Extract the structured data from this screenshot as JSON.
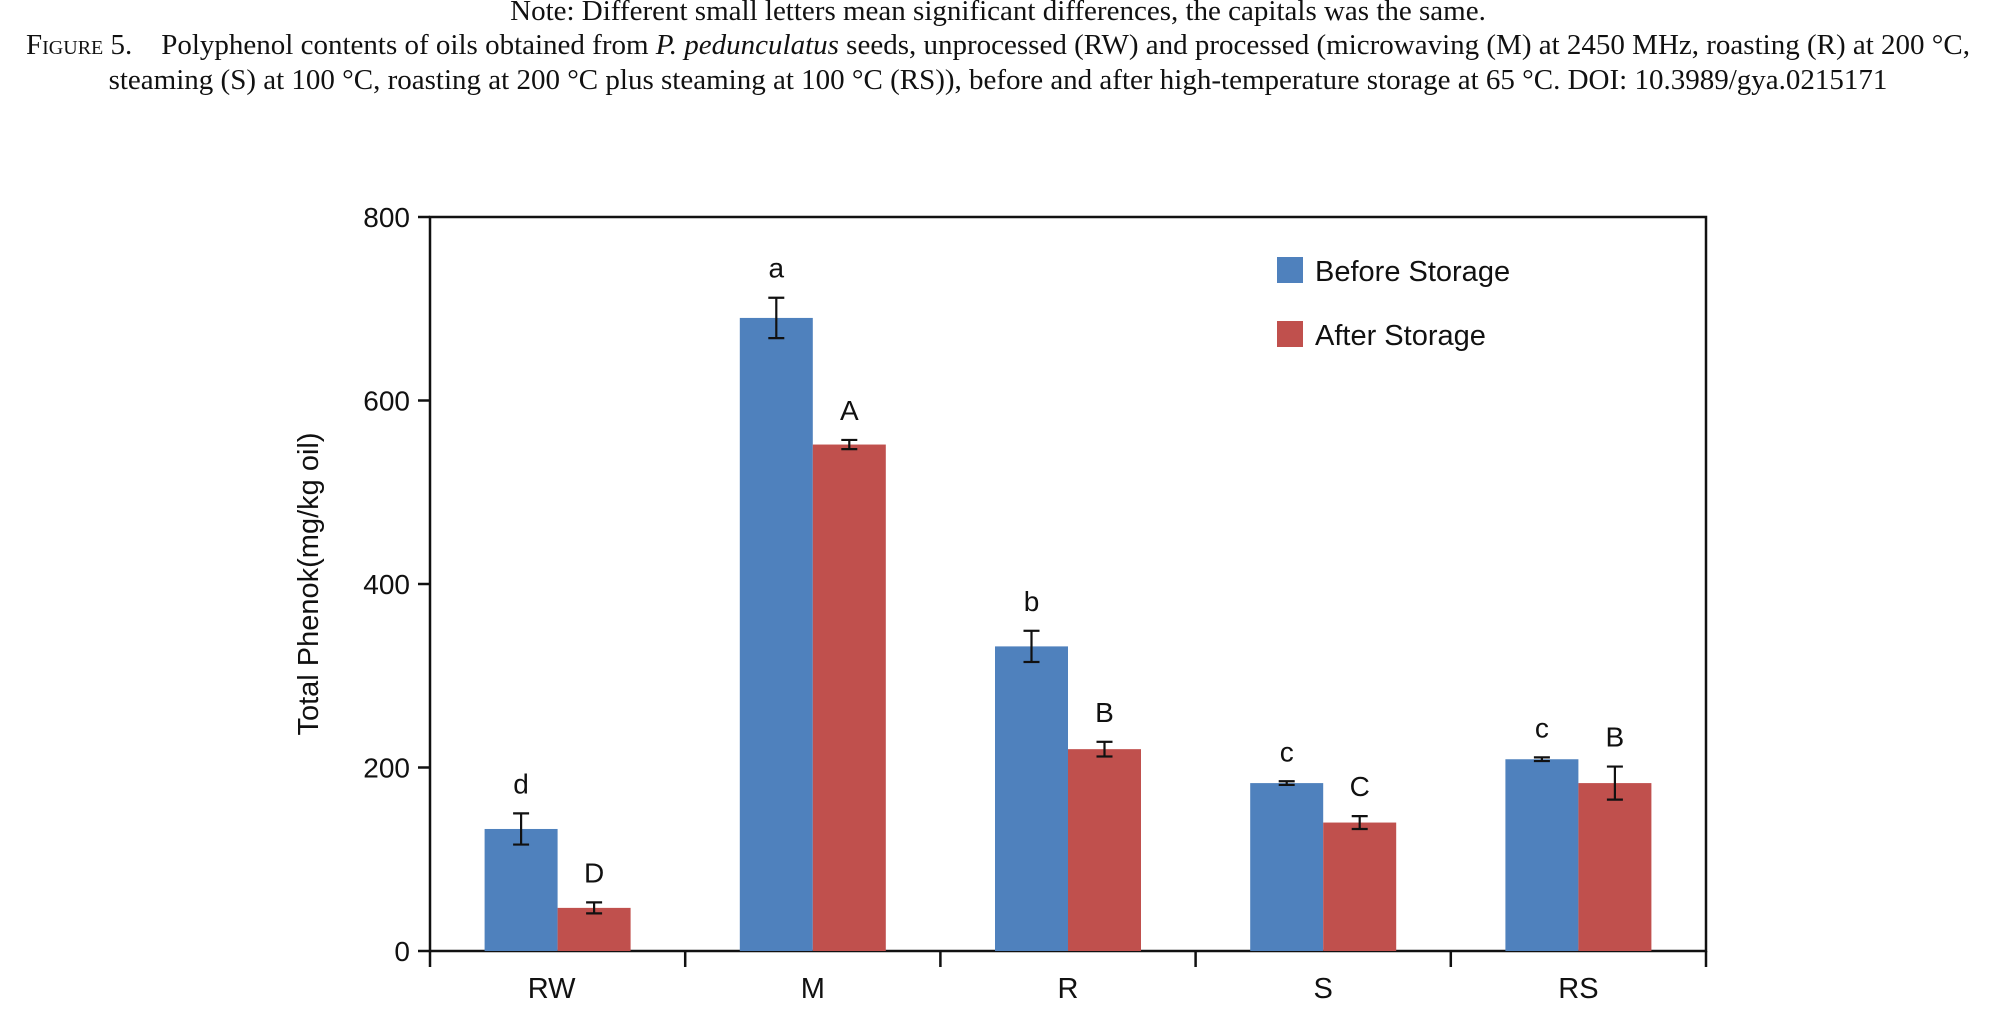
{
  "caption": {
    "note": "Note: Different small letters mean significant differences, the capitals was the same.",
    "figure_label": "Figure 5.",
    "text_before_italic": "Polyphenol contents of oils obtained from ",
    "italic_species": "P. pedunculatus",
    "text_after_italic": " seeds, unprocessed (RW) and processed (microwaving (M) at 2450 MHz, roasting (R) at 200 °C, steaming (S) at 100 °C, roasting at 200 °C plus steaming at 100 °C (RS)), before and after high-temperature storage at 65 °C. DOI: 10.3989/gya.0215171"
  },
  "chart_data": {
    "type": "bar",
    "categories": [
      "RW",
      "M",
      "R",
      "S",
      "RS"
    ],
    "ylabel": "Total Phenok(mg/kg oil)",
    "xlabel": "",
    "ylim": [
      0,
      800
    ],
    "yticks": [
      0,
      200,
      400,
      600,
      800
    ],
    "legend_position": "top-right",
    "series": [
      {
        "name": "Before Storage",
        "color": "#4f81bd",
        "values": [
          133,
          690,
          332,
          183,
          209
        ],
        "errors": [
          17,
          22,
          17,
          2,
          2
        ],
        "letters": [
          "d",
          "a",
          "b",
          "c",
          "c"
        ]
      },
      {
        "name": "After Storage",
        "color": "#c0504d",
        "values": [
          47,
          552,
          220,
          140,
          183
        ],
        "errors": [
          6,
          5,
          8,
          7,
          18
        ],
        "letters": [
          "D",
          "A",
          "B",
          "C",
          "B"
        ]
      }
    ]
  }
}
